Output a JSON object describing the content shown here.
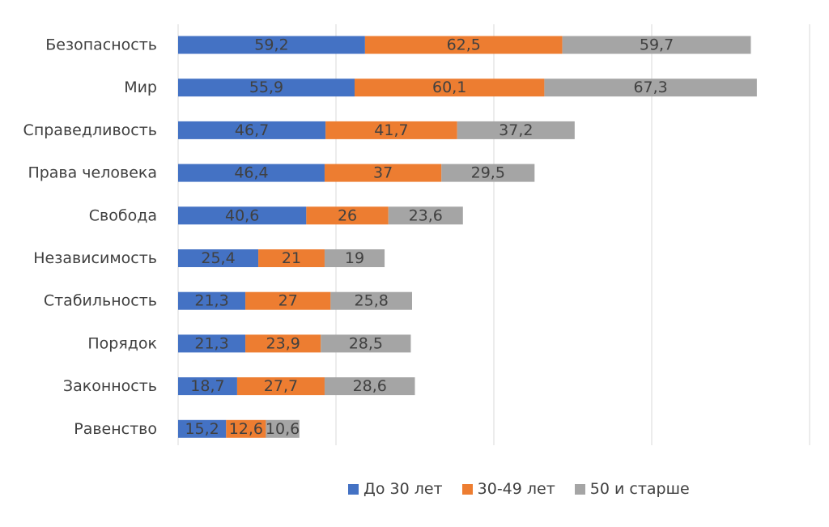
{
  "chart_data": {
    "type": "bar",
    "orientation": "horizontal",
    "stacked": true,
    "title": "",
    "xlabel": "",
    "ylabel": "",
    "xlim": [
      0,
      200
    ],
    "grid": true,
    "legend_position": "bottom",
    "categories": [
      "Безопасность",
      "Мир",
      "Справедливость",
      "Права человека",
      "Свобода",
      "Независимость",
      "Стабильность",
      "Порядок",
      "Законность",
      "Равенство"
    ],
    "series": [
      {
        "name": "До 30 лет",
        "color": "#4472C4",
        "values": [
          59.2,
          55.9,
          46.7,
          46.4,
          40.6,
          25.4,
          21.3,
          21.3,
          18.7,
          15.2
        ],
        "labels": [
          "59,2",
          "55,9",
          "46,7",
          "46,4",
          "40,6",
          "25,4",
          "21,3",
          "21,3",
          "18,7",
          "15,2"
        ]
      },
      {
        "name": "30-49 лет",
        "color": "#ED7D31",
        "values": [
          62.5,
          60.1,
          41.7,
          37,
          26,
          21,
          27,
          23.9,
          27.7,
          12.6
        ],
        "labels": [
          "62,5",
          "60,1",
          "41,7",
          "37",
          "26",
          "21",
          "27",
          "23,9",
          "27,7",
          "12,6"
        ]
      },
      {
        "name": "50 и старше",
        "color": "#A5A5A5",
        "values": [
          59.7,
          67.3,
          37.2,
          29.5,
          23.6,
          19,
          25.8,
          28.5,
          28.6,
          10.6
        ],
        "labels": [
          "59,7",
          "67,3",
          "37,2",
          "29,5",
          "23,6",
          "19",
          "25,8",
          "28,5",
          "28,6",
          "10,6"
        ]
      }
    ]
  }
}
